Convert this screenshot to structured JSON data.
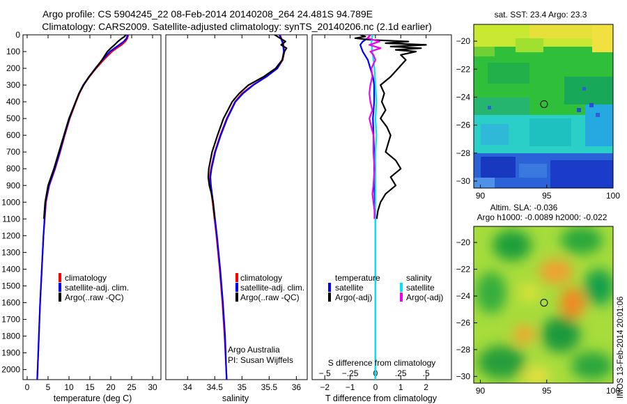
{
  "header": {
    "line1": "Argo profile: CS 5904245_22 08-Feb-2014 20140208_264 24.481S 94.789E",
    "line2": "Climatology: CARS2009. Satellite-adjusted climatology: synTS_20140206.nc (2.1d earlier)"
  },
  "colors": {
    "climatology": "#ff0000",
    "satellite": "#0000ff",
    "argo": "#000000",
    "sal_satellite": "#00e5ee",
    "sal_argo": "#ee00ee"
  },
  "depth_axis": {
    "ticks": [
      0,
      100,
      200,
      300,
      400,
      500,
      600,
      700,
      800,
      900,
      1000,
      1100,
      1200,
      1300,
      1400,
      1500,
      1600,
      1700,
      1800,
      1900,
      2000
    ],
    "range": [
      0,
      2060
    ]
  },
  "chart_data": [
    {
      "id": "temperature",
      "type": "line",
      "xlabel": "temperature (deg C)",
      "xlim": [
        -1,
        32
      ],
      "xticks": [
        0,
        5,
        10,
        15,
        20,
        25,
        30
      ],
      "legend": [
        "climatology",
        "satellite-adj. clim.",
        "Argo(..raw -QC)"
      ],
      "series": [
        {
          "name": "climatology",
          "color": "#ff0000",
          "depth": [
            0,
            20,
            40,
            60,
            80,
            100,
            150,
            200,
            250,
            300,
            350,
            400,
            500,
            600,
            700,
            800,
            900,
            1000,
            1200,
            1400,
            1600,
            1800,
            2000,
            2060
          ],
          "values": [
            24.2,
            24.0,
            23.5,
            22.6,
            21.4,
            20.3,
            18.3,
            16.5,
            14.9,
            13.5,
            12.5,
            11.7,
            10.2,
            9.0,
            7.9,
            6.7,
            5.3,
            4.5,
            3.9,
            3.5,
            3.1,
            2.8,
            2.5,
            2.4
          ]
        },
        {
          "name": "satellite-adj. clim.",
          "color": "#0000ff",
          "depth": [
            0,
            20,
            40,
            60,
            80,
            100,
            150,
            200,
            250,
            300,
            350,
            400,
            500,
            600,
            700,
            800,
            900,
            1000,
            1200,
            1400,
            1600,
            1800,
            2000,
            2060
          ],
          "values": [
            24.0,
            23.8,
            23.1,
            22.0,
            20.9,
            19.8,
            18.0,
            16.3,
            14.8,
            13.4,
            12.4,
            11.6,
            10.1,
            8.9,
            7.8,
            6.6,
            5.2,
            4.4,
            3.9,
            3.5,
            3.1,
            2.8,
            2.5,
            2.4
          ]
        },
        {
          "name": "Argo(..raw -QC)",
          "color": "#000000",
          "depth": [
            0,
            10,
            20,
            30,
            40,
            60,
            80,
            100,
            150,
            200,
            250,
            300,
            350,
            400,
            500,
            600,
            700,
            800,
            900,
            1000,
            1100
          ],
          "values": [
            23.6,
            23.3,
            22.7,
            22.2,
            21.7,
            20.9,
            20.0,
            19.2,
            17.9,
            16.4,
            14.8,
            13.5,
            12.4,
            11.6,
            10.0,
            8.8,
            7.6,
            6.4,
            5.0,
            4.3,
            4.0
          ]
        }
      ]
    },
    {
      "id": "salinity",
      "type": "line",
      "xlabel": "salinity",
      "xlim": [
        33.6,
        36.2
      ],
      "xticks": [
        34,
        34.5,
        35,
        35.5,
        36
      ],
      "legend": [
        "climatology",
        "satellite-adj. clim.",
        "Argo(..raw -QC)"
      ],
      "series": [
        {
          "name": "climatology",
          "color": "#ff0000",
          "depth": [
            0,
            50,
            100,
            150,
            200,
            250,
            300,
            350,
            400,
            500,
            600,
            700,
            800,
            850,
            900,
            1000,
            1200,
            1400,
            1600,
            1800,
            2000,
            2060
          ],
          "values": [
            35.7,
            35.76,
            35.78,
            35.75,
            35.65,
            35.45,
            35.2,
            35.0,
            34.87,
            34.72,
            34.6,
            34.5,
            34.43,
            34.41,
            34.42,
            34.46,
            34.53,
            34.59,
            34.64,
            34.68,
            34.71,
            34.72
          ]
        },
        {
          "name": "satellite-adj. clim.",
          "color": "#0000ff",
          "depth": [
            0,
            50,
            100,
            150,
            200,
            250,
            300,
            350,
            400,
            500,
            600,
            700,
            800,
            850,
            900,
            1000,
            1200,
            1400,
            1600,
            1800,
            2000,
            2060
          ],
          "values": [
            35.69,
            35.75,
            35.77,
            35.74,
            35.65,
            35.45,
            35.21,
            35.02,
            34.88,
            34.73,
            34.61,
            34.51,
            34.44,
            34.42,
            34.43,
            34.47,
            34.54,
            34.6,
            34.65,
            34.69,
            34.71,
            34.72
          ]
        },
        {
          "name": "Argo(..raw -QC)",
          "color": "#000000",
          "depth": [
            0,
            20,
            40,
            60,
            80,
            100,
            150,
            200,
            250,
            300,
            350,
            400,
            500,
            600,
            700,
            800,
            850,
            900,
            950,
            1000,
            1100
          ],
          "values": [
            35.6,
            35.7,
            35.8,
            35.72,
            35.82,
            35.78,
            35.74,
            35.62,
            35.4,
            35.12,
            34.95,
            34.82,
            34.66,
            34.55,
            34.45,
            34.39,
            34.38,
            34.4,
            34.44,
            34.47,
            34.5
          ]
        }
      ]
    },
    {
      "id": "difference",
      "type": "line",
      "xlabel_bottom": "T difference from climatology",
      "xlabel_top": "S difference from climatology",
      "xlim": [
        -2.5,
        3.0
      ],
      "xticks": [
        -2,
        -1,
        0,
        1,
        2
      ],
      "top_ticks": [
        -0.5,
        -0.25,
        0,
        0.25,
        0.5
      ],
      "legend_title_left": "temperature",
      "legend_title_right": "salinity",
      "legend_left": [
        "satellite",
        "Argo(-adj)"
      ],
      "legend_right": [
        "satellite",
        "Argo(-adj)"
      ],
      "note_line1": "Argo Australia",
      "note_line2": "PI: Susan Wijffels",
      "series": [
        {
          "name": "T satellite",
          "color": "#0000ff",
          "depth": [
            0,
            20,
            40,
            60,
            80,
            100,
            150,
            200,
            250,
            300,
            400,
            500,
            700,
            900,
            1100,
            1400,
            1700,
            2060
          ],
          "values": [
            -0.2,
            -0.3,
            -0.5,
            -0.6,
            -0.55,
            -0.5,
            -0.3,
            -0.2,
            -0.1,
            -0.05,
            -0.05,
            -0.1,
            -0.05,
            -0.05,
            0,
            0,
            0,
            0
          ]
        },
        {
          "name": "T Argo(-adj)",
          "color": "#000000",
          "depth": [
            0,
            10,
            20,
            30,
            40,
            50,
            60,
            70,
            80,
            90,
            100,
            120,
            150,
            200,
            250,
            300,
            350,
            400,
            450,
            500,
            550,
            600,
            650,
            700,
            750,
            800,
            850,
            900,
            950,
            1000,
            1050,
            1100
          ],
          "values": [
            -0.6,
            -0.4,
            -0.8,
            -0.2,
            1.3,
            0.4,
            2.0,
            0.6,
            1.8,
            0.8,
            1.6,
            1.0,
            1.2,
            0.9,
            0.6,
            0.2,
            0.35,
            0.25,
            0.4,
            0.2,
            0.45,
            0.6,
            0.5,
            0.4,
            0.8,
            1.0,
            0.6,
            0.8,
            0.4,
            0.2,
            0.1,
            0.05
          ]
        },
        {
          "name": "S satellite",
          "color": "#00e5ee",
          "depth": [
            0,
            50,
            100,
            200,
            300,
            400,
            500,
            600,
            700,
            900,
            1100,
            1400,
            1700,
            2060
          ],
          "values": [
            -0.03,
            -0.04,
            -0.03,
            -0.01,
            0,
            0.01,
            0,
            0.01,
            0,
            0,
            0,
            0,
            0,
            0
          ]
        },
        {
          "name": "S Argo(-adj)",
          "color": "#ee00ee",
          "depth": [
            0,
            20,
            40,
            60,
            80,
            100,
            120,
            150,
            200,
            250,
            300,
            350,
            400,
            450,
            500,
            550,
            600,
            700,
            800,
            900,
            950,
            1000,
            1050,
            1100
          ],
          "values": [
            -0.05,
            -0.08,
            0.04,
            -0.06,
            0.05,
            -0.05,
            -0.02,
            0.0,
            -0.04,
            -0.03,
            -0.05,
            -0.06,
            -0.05,
            -0.03,
            -0.06,
            -0.04,
            -0.02,
            -0.02,
            -0.01,
            -0.02,
            -0.03,
            -0.02,
            -0.01,
            -0.01
          ]
        }
      ]
    },
    {
      "id": "sst_map",
      "type": "heatmap",
      "title": "sat. SST: 23.4  Argo: 23.3",
      "xlim": [
        89.5,
        100
      ],
      "ylim": [
        -30.5,
        -18.8
      ],
      "xticks": [
        90,
        95,
        100
      ],
      "yticks": [
        -20,
        -22,
        -24,
        -26,
        -28,
        -30
      ],
      "marker": {
        "lon": 94.8,
        "lat": -24.5
      }
    },
    {
      "id": "sla_map",
      "type": "heatmap",
      "title_line1": "Altim. SLA: -0.036",
      "title_line2": "Argo h1000: -0.0089 h2000: -0.022",
      "xlim": [
        89.5,
        100
      ],
      "ylim": [
        -30.5,
        -18.8
      ],
      "xticks": [
        90,
        95,
        100
      ],
      "yticks": [
        -20,
        -22,
        -24,
        -26,
        -28,
        -30
      ],
      "marker": {
        "lon": 94.8,
        "lat": -24.5
      }
    }
  ],
  "footer_stamp": "IMOS 13-Feb-2014 20:01:06"
}
